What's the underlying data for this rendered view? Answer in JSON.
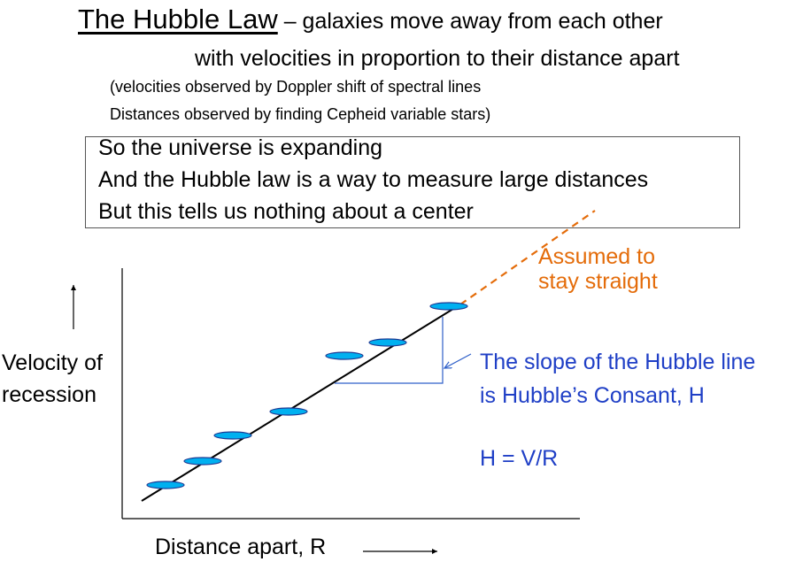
{
  "header": {
    "title": "The Hubble Law",
    "title_rest": " – galaxies move away from each other",
    "title_line2": "with velocities in proportion to their distance apart",
    "note1": "(velocities observed by Doppler shift of spectral lines",
    "note2": "Distances observed by finding Cepheid variable stars)"
  },
  "summary": {
    "line1": "So the universe is expanding",
    "line2": "And the Hubble law is a way to measure large distances",
    "line3": "But this tells us nothing about a center"
  },
  "chart": {
    "y_label": "Velocity of recession",
    "x_label": "Distance apart, R",
    "extrapolation_label": "Assumed to stay straight",
    "slope_label_line1": "The slope of the Hubble line",
    "slope_label_line2": "is Hubble’s Consant, H",
    "formula": "H = V/R",
    "colors": {
      "galaxy_fill": "#00B0F0",
      "galaxy_stroke": "#1F3A93",
      "extrapolation": "#E46C0A",
      "slope_text": "#1F3FC6",
      "slope_lines": "#2E5FC9"
    }
  }
}
